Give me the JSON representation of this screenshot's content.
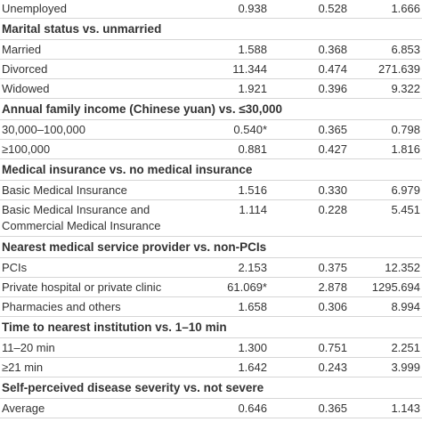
{
  "table": {
    "rows": [
      {
        "label": "Unemployed",
        "cells": [
          "0.938",
          "0.528",
          "1.666"
        ]
      },
      {
        "section": "Marital status vs. unmarried"
      },
      {
        "label": "Married",
        "cells": [
          "1.588",
          "0.368",
          "6.853"
        ]
      },
      {
        "label": "Divorced",
        "cells": [
          "11.344",
          "0.474",
          "271.639"
        ]
      },
      {
        "label": "Widowed",
        "cells": [
          "1.921",
          "0.396",
          "9.322"
        ]
      },
      {
        "section": "Annual family income (Chinese yuan) vs. ≤30,000"
      },
      {
        "label": "30,000–100,000",
        "cells": [
          "0.540*",
          "0.365",
          "0.798"
        ]
      },
      {
        "label": "≥100,000",
        "cells": [
          "0.881",
          "0.427",
          "1.816"
        ]
      },
      {
        "section": "Medical insurance vs. no medical insurance"
      },
      {
        "label": "Basic Medical Insurance",
        "cells": [
          "1.516",
          "0.330",
          "6.979"
        ]
      },
      {
        "label_lines": [
          "Basic Medical Insurance and",
          "Commercial Medical Insurance"
        ],
        "cells": [
          "1.114",
          "0.228",
          "5.451"
        ]
      },
      {
        "section": "Nearest medical service provider vs. non-PCIs"
      },
      {
        "label": "PCIs",
        "cells": [
          "2.153",
          "0.375",
          "12.352"
        ]
      },
      {
        "label": "Private hospital or private clinic",
        "cells": [
          "61.069*",
          "2.878",
          "1295.694"
        ]
      },
      {
        "label": "Pharmacies and others",
        "cells": [
          "1.658",
          "0.306",
          "8.994"
        ]
      },
      {
        "section": "Time to nearest institution vs. 1–10 min"
      },
      {
        "label": "11–20 min",
        "cells": [
          "1.300",
          "0.751",
          "2.251"
        ]
      },
      {
        "label": "≥21 min",
        "cells": [
          "1.642",
          "0.243",
          "3.999"
        ]
      },
      {
        "section": "Self-perceived disease severity vs. not severe"
      },
      {
        "label": "Average",
        "cells": [
          "0.646",
          "0.365",
          "1.143"
        ]
      }
    ]
  }
}
